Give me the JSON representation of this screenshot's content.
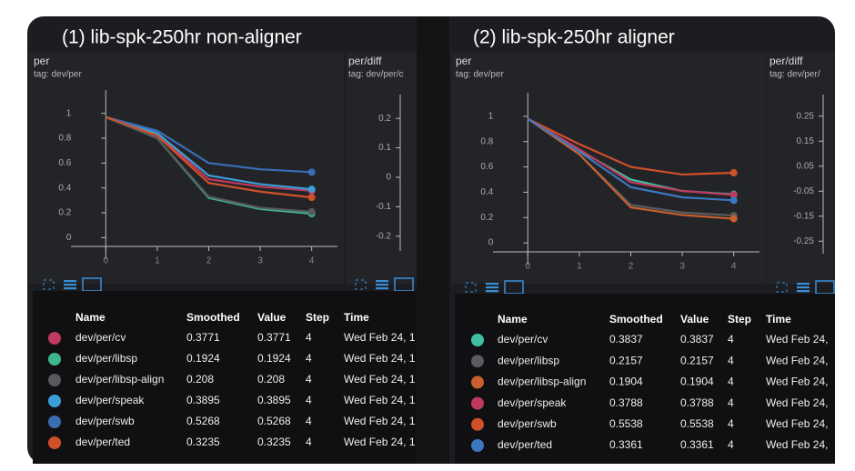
{
  "panels": [
    {
      "title": "(1) lib-spk-250hr non-aligner",
      "chart": {
        "type": "line",
        "title": "per",
        "tag": "tag: dev/per",
        "x": [
          0,
          1,
          2,
          3,
          4
        ],
        "xlim": [
          -0.5,
          4.5
        ],
        "xticks": [
          0,
          1,
          2,
          3,
          4
        ],
        "ylim": [
          -0.1,
          1.1
        ],
        "yticks": [
          0,
          0.2,
          0.4,
          0.6,
          0.8,
          1
        ],
        "series": [
          {
            "name": "dev/per/cv",
            "color": "#c0395f",
            "values": [
              0.97,
              0.83,
              0.47,
              0.41,
              0.3771
            ]
          },
          {
            "name": "dev/per/libsp",
            "color": "#3fb58e",
            "values": [
              0.97,
              0.8,
              0.32,
              0.23,
              0.1924
            ]
          },
          {
            "name": "dev/per/libsp-align",
            "color": "#58595c",
            "values": [
              0.97,
              0.8,
              0.33,
              0.24,
              0.208
            ]
          },
          {
            "name": "dev/per/speak",
            "color": "#3a9ed8",
            "values": [
              0.97,
              0.84,
              0.5,
              0.43,
              0.3895
            ]
          },
          {
            "name": "dev/per/swb",
            "color": "#3b6db5",
            "values": [
              0.97,
              0.86,
              0.6,
              0.55,
              0.5268
            ]
          },
          {
            "name": "dev/per/ted",
            "color": "#d0502a",
            "values": [
              0.97,
              0.82,
              0.44,
              0.37,
              0.3235
            ]
          }
        ]
      },
      "side_chart": {
        "title": "per/diff",
        "tag": "tag: dev/per/c",
        "ylim": [
          -0.25,
          0.25
        ],
        "yticks": [
          -0.2,
          -0.1,
          0,
          0.1,
          0.2
        ]
      },
      "table": {
        "columns": [
          "Name",
          "Smoothed",
          "Value",
          "Step",
          "Time"
        ],
        "rows": [
          {
            "smoothed": 0.3771,
            "value": 0.3771,
            "step": 4,
            "time": "Wed Feb 24, 1"
          },
          {
            "smoothed": 0.1924,
            "value": 0.1924,
            "step": 4,
            "time": "Wed Feb 24, 1"
          },
          {
            "smoothed": 0.208,
            "value": 0.208,
            "step": 4,
            "time": "Wed Feb 24, 1"
          },
          {
            "smoothed": 0.3895,
            "value": 0.3895,
            "step": 4,
            "time": "Wed Feb 24, 1"
          },
          {
            "smoothed": 0.5268,
            "value": 0.5268,
            "step": 4,
            "time": "Wed Feb 24, 1"
          },
          {
            "smoothed": 0.3235,
            "value": 0.3235,
            "step": 4,
            "time": "Wed Feb 24, 1"
          }
        ]
      }
    },
    {
      "title": "(2) lib-spk-250hr aligner",
      "chart": {
        "type": "line",
        "title": "per",
        "tag": "tag: dev/per",
        "x": [
          0,
          1,
          2,
          3,
          4
        ],
        "xlim": [
          -0.5,
          4.5
        ],
        "xticks": [
          0,
          1,
          2,
          3,
          4
        ],
        "ylim": [
          -0.1,
          1.1
        ],
        "yticks": [
          0,
          0.2,
          0.4,
          0.6,
          0.8,
          1
        ],
        "series": [
          {
            "name": "dev/per/cv",
            "color": "#3fbfa0",
            "values": [
              0.98,
              0.73,
              0.5,
              0.41,
              0.3837
            ]
          },
          {
            "name": "dev/per/libsp",
            "color": "#5a5b5e",
            "values": [
              0.98,
              0.7,
              0.3,
              0.24,
              0.2157
            ]
          },
          {
            "name": "dev/per/libsp-align",
            "color": "#c8602f",
            "values": [
              0.98,
              0.7,
              0.28,
              0.22,
              0.1904
            ]
          },
          {
            "name": "dev/per/speak",
            "color": "#c0395f",
            "values": [
              0.98,
              0.74,
              0.48,
              0.41,
              0.3788
            ]
          },
          {
            "name": "dev/per/swb",
            "color": "#d0502a",
            "values": [
              0.98,
              0.78,
              0.6,
              0.54,
              0.5538
            ]
          },
          {
            "name": "dev/per/ted",
            "color": "#3b78c0",
            "values": [
              0.98,
              0.72,
              0.44,
              0.36,
              0.3361
            ]
          }
        ]
      },
      "side_chart": {
        "title": "per/diff",
        "tag": "tag: dev/per/",
        "ylim": [
          -0.3,
          0.3
        ],
        "yticks": [
          -0.25,
          -0.15,
          -0.05,
          0.05,
          0.15,
          0.25
        ]
      },
      "table": {
        "columns": [
          "Name",
          "Smoothed",
          "Value",
          "Step",
          "Time"
        ],
        "rows": [
          {
            "smoothed": 0.3837,
            "value": 0.3837,
            "step": 4,
            "time": "Wed Feb 24,"
          },
          {
            "smoothed": 0.2157,
            "value": 0.2157,
            "step": 4,
            "time": "Wed Feb 24,"
          },
          {
            "smoothed": 0.1904,
            "value": 0.1904,
            "step": 4,
            "time": "Wed Feb 24,"
          },
          {
            "smoothed": 0.3788,
            "value": 0.3788,
            "step": 4,
            "time": "Wed Feb 24,"
          },
          {
            "smoothed": 0.5538,
            "value": 0.5538,
            "step": 4,
            "time": "Wed Feb 24,"
          },
          {
            "smoothed": 0.3361,
            "value": 0.3361,
            "step": 4,
            "time": "Wed Feb 24,"
          }
        ]
      }
    }
  ]
}
